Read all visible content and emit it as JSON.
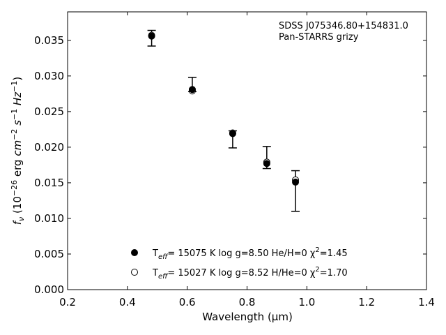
{
  "chart_data": {
    "type": "scatter",
    "title": "",
    "xlabel": "Wavelength (μm)",
    "ylabel": "f_ν (10^-26 erg cm^-2 s^-1 Hz^-1)",
    "xlim": [
      0.2,
      1.4
    ],
    "ylim": [
      0.0,
      0.039
    ],
    "xticks": [
      "0.2",
      "0.4",
      "0.6",
      "0.8",
      "1.0",
      "1.2",
      "1.4"
    ],
    "yticks": [
      "0.000",
      "0.005",
      "0.010",
      "0.015",
      "0.020",
      "0.025",
      "0.030",
      "0.035"
    ],
    "grid": false,
    "annotations": [
      "SDSS J075346.80+154831.0",
      "Pan-STARRS grizy"
    ],
    "observed": {
      "x": [
        0.481,
        0.617,
        0.752,
        0.866,
        0.962
      ],
      "y_low": [
        0.0342,
        0.0278,
        0.0199,
        0.017,
        0.011
      ],
      "y_high": [
        0.0364,
        0.0298,
        0.0223,
        0.0201,
        0.0167
      ]
    },
    "series": [
      {
        "name": "T_eff= 15075 K  log g=8.50  He/H=0  χ²=1.45",
        "marker": "filled-circle",
        "x": [
          0.481,
          0.617,
          0.752,
          0.866,
          0.962
        ],
        "y": [
          0.0356,
          0.0281,
          0.0219,
          0.0177,
          0.0151
        ]
      },
      {
        "name": "T_eff= 15027 K  log g=8.52  H/He=0  χ²=1.70",
        "marker": "open-circle",
        "x": [
          0.481,
          0.617,
          0.752,
          0.866,
          0.962
        ],
        "y": [
          0.0357,
          0.0279,
          0.022,
          0.0179,
          0.0154
        ]
      }
    ],
    "legend": {
      "placement": "lower-center",
      "items": [
        {
          "prefix": "T",
          "sub": "eff",
          "mid": "= 15075 K  log g=8.50  He/H=0  χ",
          "sup": "2",
          "tail": "=1.45"
        },
        {
          "prefix": "T",
          "sub": "eff",
          "mid": "= 15027 K  log g=8.52  H/He=0  χ",
          "sup": "2",
          "tail": "=1.70"
        }
      ]
    },
    "colors": {
      "axis": "#000000",
      "marker": "#000000",
      "background": "#ffffff"
    }
  }
}
